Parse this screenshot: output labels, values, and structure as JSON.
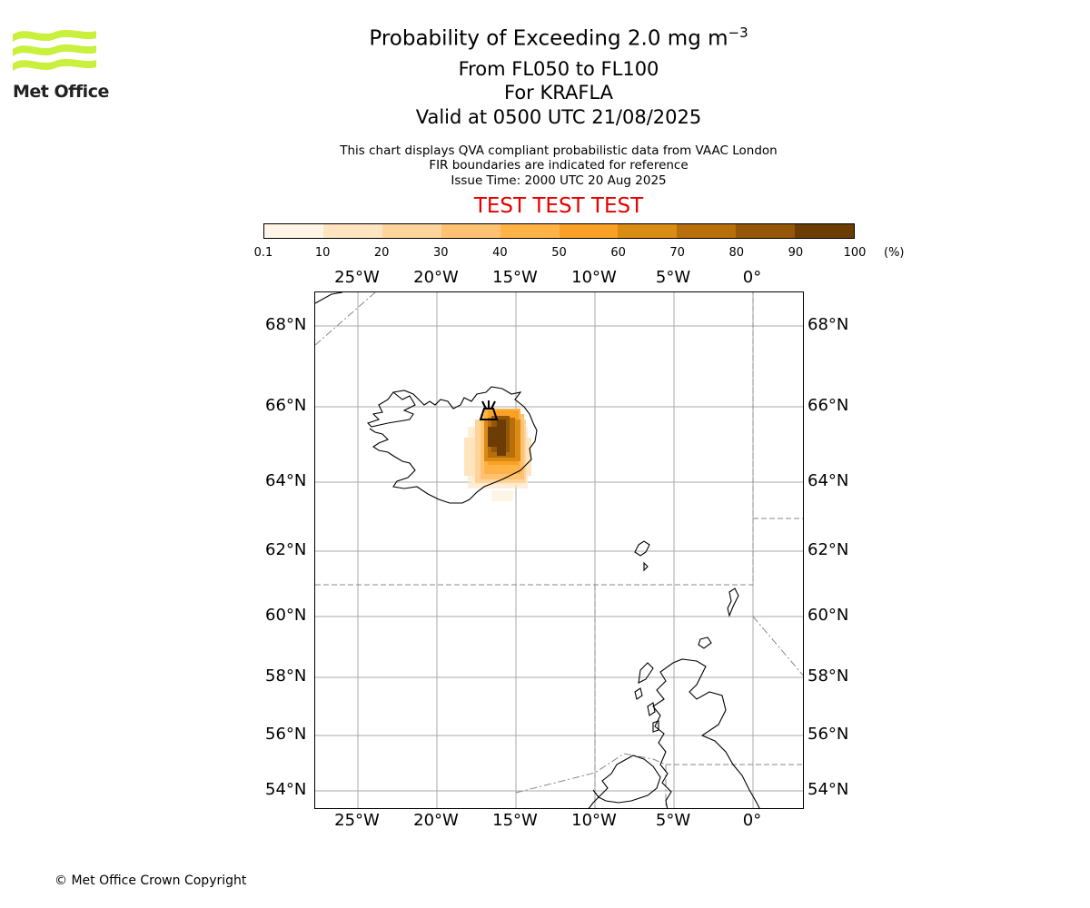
{
  "header": {
    "title": "Probability of Exceeding 2.0 mg m",
    "title_sup": "−3",
    "levels": "From FL050 to FL100",
    "volcano": "For KRAFLA",
    "valid": "Valid at 0500 UTC 21/08/2025",
    "info_line1": "This chart displays QVA compliant probabilistic data from VAAC London",
    "info_line2": "FIR boundaries are indicated for reference",
    "info_line3": "Issue Time: 2000 UTC 20 Aug 2025",
    "test_banner": "TEST TEST TEST"
  },
  "logo": {
    "text": "Met Office",
    "color": "#c8f03c"
  },
  "colorbar": {
    "ticks": [
      "0.1",
      "10",
      "20",
      "30",
      "40",
      "50",
      "60",
      "70",
      "80",
      "90",
      "100"
    ],
    "unit": "(%)",
    "colors": [
      "#fff5e6",
      "#ffe4c0",
      "#ffd49a",
      "#ffc272",
      "#ffb347",
      "#fba026",
      "#d98b13",
      "#b86f0b",
      "#955607",
      "#6b3d05"
    ]
  },
  "map": {
    "lon_labels": [
      "25°W",
      "20°W",
      "15°W",
      "10°W",
      "5°W",
      "0°"
    ],
    "lat_labels": [
      "68°N",
      "66°N",
      "64°N",
      "62°N",
      "60°N",
      "58°N",
      "56°N",
      "54°N"
    ],
    "volcano_name": "KRAFLA",
    "volcano_icon": "volcano-icon"
  },
  "footer": {
    "copyright": "© Met Office Crown Copyright"
  }
}
